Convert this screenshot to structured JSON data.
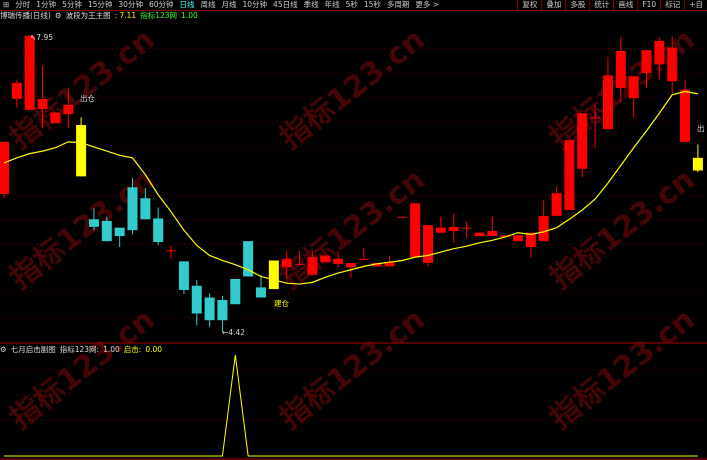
{
  "toolbar": {
    "menu_icon": "grid-icon",
    "periods": [
      "分时",
      "1分钟",
      "5分钟",
      "15分钟",
      "30分钟",
      "60分钟",
      "日线",
      "周线",
      "月线",
      "10分钟",
      "45日线",
      "季线",
      "年线",
      "5秒",
      "15秒",
      "多周期",
      "更多 >"
    ],
    "active_period": "日线",
    "right_buttons": [
      "复权",
      "叠加",
      "多股",
      "统计",
      "画线",
      "F10",
      "标记",
      "+自"
    ]
  },
  "main_header": {
    "stock": "博瑞传播(日线)",
    "indicator_icon": "settings-icon",
    "indicator": "波段为王主图",
    "indicator_value": ": 7.11",
    "line_name": "指标123网",
    "line_value": "1.00"
  },
  "sub_header": {
    "indicator_icon": "settings-icon",
    "indicator": "七月启击副图",
    "line_name": "指标123网:",
    "line_value": "1.00",
    "signal_name": "启击:",
    "signal_value": "0.00"
  },
  "watermark": "指标123.cn",
  "colors": {
    "up": "#ff0000",
    "down": "#33cccc",
    "signal": "#ffff00",
    "ma": "#ffff00",
    "grid": "#5a0000",
    "background": "#000000"
  },
  "chart_data": [
    {
      "type": "candlestick",
      "price_range": [
        4.42,
        7.95
      ],
      "grid": true,
      "annotations": {
        "high_label": "7.95",
        "low_label": "4.42",
        "sell_label": "出仓",
        "buy_label": "建仓",
        "sell_label_right": "出"
      },
      "candles": [
        {
          "o": 6.06,
          "h": 6.68,
          "l": 6.01,
          "c": 6.68
        },
        {
          "o": 7.19,
          "h": 7.42,
          "l": 7.09,
          "c": 7.38
        },
        {
          "o": 7.06,
          "h": 7.95,
          "l": 7.06,
          "c": 7.94
        },
        {
          "o": 7.07,
          "h": 7.59,
          "l": 6.84,
          "c": 7.19
        },
        {
          "o": 6.9,
          "h": 7.03,
          "l": 6.9,
          "c": 7.03
        },
        {
          "o": 7.01,
          "h": 7.32,
          "l": 6.84,
          "c": 7.12
        },
        {
          "o": 6.88,
          "h": 6.97,
          "l": 6.27,
          "c": 6.27,
          "signal": "sell"
        },
        {
          "o": 5.76,
          "h": 5.89,
          "l": 5.63,
          "c": 5.67
        },
        {
          "o": 5.74,
          "h": 5.79,
          "l": 5.5,
          "c": 5.5
        },
        {
          "o": 5.66,
          "h": 5.66,
          "l": 5.43,
          "c": 5.56
        },
        {
          "o": 6.14,
          "h": 6.25,
          "l": 5.58,
          "c": 5.63
        },
        {
          "o": 6.01,
          "h": 6.13,
          "l": 5.76,
          "c": 5.76
        },
        {
          "o": 5.77,
          "h": 5.9,
          "l": 5.45,
          "c": 5.49
        },
        {
          "o": 5.39,
          "h": 5.45,
          "l": 5.29,
          "c": 5.39
        },
        {
          "o": 5.26,
          "h": 5.26,
          "l": 4.87,
          "c": 4.92
        },
        {
          "o": 4.97,
          "h": 5.04,
          "l": 4.5,
          "c": 4.64
        },
        {
          "o": 4.83,
          "h": 4.88,
          "l": 4.48,
          "c": 4.56
        },
        {
          "o": 4.8,
          "h": 4.85,
          "l": 4.42,
          "c": 4.56
        },
        {
          "o": 5.05,
          "h": 5.05,
          "l": 4.75,
          "c": 4.75
        },
        {
          "o": 5.5,
          "h": 5.5,
          "l": 5.08,
          "c": 5.08
        },
        {
          "o": 4.95,
          "h": 5.1,
          "l": 4.83,
          "c": 4.83
        },
        {
          "o": 4.93,
          "h": 5.27,
          "l": 4.93,
          "c": 5.27,
          "signal": "buy"
        },
        {
          "o": 5.19,
          "h": 5.38,
          "l": 5.05,
          "c": 5.29
        },
        {
          "o": 5.23,
          "h": 5.39,
          "l": 5.23,
          "c": 5.23
        },
        {
          "o": 5.1,
          "h": 5.38,
          "l": 5.1,
          "c": 5.31
        },
        {
          "o": 5.25,
          "h": 5.33,
          "l": 5.25,
          "c": 5.33
        },
        {
          "o": 5.23,
          "h": 5.38,
          "l": 5.19,
          "c": 5.29
        },
        {
          "o": 5.19,
          "h": 5.24,
          "l": 5.06,
          "c": 5.24
        },
        {
          "o": 5.29,
          "h": 5.42,
          "l": 5.29,
          "c": 5.29
        },
        {
          "o": 5.2,
          "h": 5.24,
          "l": 5.2,
          "c": 5.24
        },
        {
          "o": 5.2,
          "h": 5.33,
          "l": 5.2,
          "c": 5.25
        },
        {
          "o": 5.79,
          "h": 5.79,
          "l": 5.79,
          "c": 5.79
        },
        {
          "o": 5.31,
          "h": 5.95,
          "l": 5.31,
          "c": 5.95
        },
        {
          "o": 5.24,
          "h": 5.69,
          "l": 5.2,
          "c": 5.69
        },
        {
          "o": 5.6,
          "h": 5.79,
          "l": 5.6,
          "c": 5.66
        },
        {
          "o": 5.62,
          "h": 5.83,
          "l": 5.48,
          "c": 5.67
        },
        {
          "o": 5.66,
          "h": 5.73,
          "l": 5.54,
          "c": 5.66
        },
        {
          "o": 5.56,
          "h": 5.6,
          "l": 5.56,
          "c": 5.6
        },
        {
          "o": 5.56,
          "h": 5.79,
          "l": 5.56,
          "c": 5.62
        },
        {
          "o": 5.55,
          "h": 5.57,
          "l": 5.55,
          "c": 5.57
        },
        {
          "o": 5.5,
          "h": 5.57,
          "l": 5.5,
          "c": 5.57
        },
        {
          "o": 5.43,
          "h": 5.6,
          "l": 5.31,
          "c": 5.6
        },
        {
          "o": 5.5,
          "h": 5.99,
          "l": 5.5,
          "c": 5.8
        },
        {
          "o": 5.8,
          "h": 6.15,
          "l": 5.8,
          "c": 6.07
        },
        {
          "o": 5.87,
          "h": 6.7,
          "l": 5.87,
          "c": 6.7
        },
        {
          "o": 6.36,
          "h": 7.02,
          "l": 6.26,
          "c": 7.02
        },
        {
          "o": 6.97,
          "h": 7.12,
          "l": 6.61,
          "c": 6.97
        },
        {
          "o": 6.83,
          "h": 7.69,
          "l": 6.83,
          "c": 7.47
        },
        {
          "o": 7.32,
          "h": 7.93,
          "l": 7.15,
          "c": 7.76
        },
        {
          "o": 7.2,
          "h": 7.46,
          "l": 6.96,
          "c": 7.46
        },
        {
          "o": 7.5,
          "h": 7.77,
          "l": 7.32,
          "c": 7.77
        },
        {
          "o": 7.6,
          "h": 7.92,
          "l": 7.42,
          "c": 7.88
        },
        {
          "o": 7.4,
          "h": 7.93,
          "l": 7.26,
          "c": 7.8
        },
        {
          "o": 6.68,
          "h": 7.42,
          "l": 6.68,
          "c": 7.3
        },
        {
          "o": 6.34,
          "h": 6.65,
          "l": 6.32,
          "c": 6.49,
          "signal": "sell"
        }
      ],
      "ma": [
        6.43,
        6.49,
        6.54,
        6.57,
        6.61,
        6.68,
        6.67,
        6.62,
        6.57,
        6.52,
        6.49,
        6.29,
        6.05,
        5.85,
        5.63,
        5.45,
        5.33,
        5.27,
        5.22,
        5.16,
        5.08,
        5.04,
        5.0,
        4.99,
        5.01,
        5.07,
        5.12,
        5.16,
        5.2,
        5.23,
        5.25,
        5.27,
        5.31,
        5.33,
        5.37,
        5.41,
        5.44,
        5.48,
        5.51,
        5.55,
        5.6,
        5.58,
        5.61,
        5.66,
        5.76,
        5.87,
        6.0,
        6.19,
        6.4,
        6.61,
        6.81,
        7.02,
        7.24,
        7.28,
        7.25
      ]
    },
    {
      "type": "line",
      "name": "启击",
      "range": [
        0,
        1
      ],
      "values": [
        0,
        0,
        0,
        0,
        0,
        0,
        0,
        0,
        0,
        0,
        0,
        0,
        0,
        0,
        0,
        0,
        0,
        0,
        1,
        0,
        0,
        0,
        0,
        0,
        0,
        0,
        0,
        0,
        0,
        0,
        0,
        0,
        0,
        0,
        0,
        0,
        0,
        0,
        0,
        0,
        0,
        0,
        0,
        0,
        0,
        0,
        0,
        0,
        0,
        0,
        0,
        0,
        0,
        0,
        0
      ]
    }
  ]
}
